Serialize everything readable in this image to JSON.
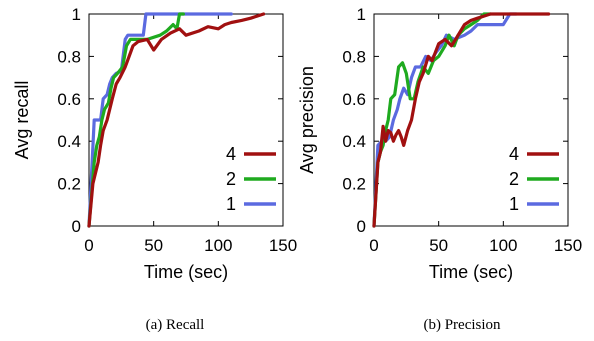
{
  "chart_data": [
    {
      "type": "line",
      "subtitle": "(a) Recall",
      "xlabel": "Time (sec)",
      "ylabel": "Avg recall",
      "xlim": [
        0,
        150
      ],
      "ylim": [
        0,
        1
      ],
      "xticks": [
        "0",
        "50",
        "100",
        "150"
      ],
      "yticks": [
        "0",
        "0.2",
        "0.4",
        "0.6",
        "0.8",
        "1"
      ],
      "grid": false,
      "legend_position": "bottom-right",
      "series": [
        {
          "name": "4",
          "color": "#a11010",
          "points": [
            [
              0,
              0
            ],
            [
              3,
              0.2
            ],
            [
              5,
              0.25
            ],
            [
              7,
              0.3
            ],
            [
              9,
              0.38
            ],
            [
              11,
              0.45
            ],
            [
              14,
              0.5
            ],
            [
              16,
              0.55
            ],
            [
              18,
              0.6
            ],
            [
              21,
              0.67
            ],
            [
              24,
              0.7
            ],
            [
              28,
              0.75
            ],
            [
              31,
              0.8
            ],
            [
              34,
              0.85
            ],
            [
              38,
              0.87
            ],
            [
              45,
              0.88
            ],
            [
              50,
              0.83
            ],
            [
              56,
              0.88
            ],
            [
              63,
              0.91
            ],
            [
              70,
              0.93
            ],
            [
              75,
              0.9
            ],
            [
              85,
              0.92
            ],
            [
              92,
              0.94
            ],
            [
              100,
              0.93
            ],
            [
              105,
              0.95
            ],
            [
              110,
              0.96
            ],
            [
              118,
              0.97
            ],
            [
              125,
              0.98
            ],
            [
              130,
              0.99
            ],
            [
              135,
              1.0
            ]
          ]
        },
        {
          "name": "2",
          "color": "#1faa1f",
          "points": [
            [
              0,
              0
            ],
            [
              4,
              0.3
            ],
            [
              6,
              0.38
            ],
            [
              8,
              0.42
            ],
            [
              10,
              0.5
            ],
            [
              12,
              0.55
            ],
            [
              15,
              0.58
            ],
            [
              17,
              0.65
            ],
            [
              19,
              0.7
            ],
            [
              22,
              0.72
            ],
            [
              26,
              0.75
            ],
            [
              29,
              0.85
            ],
            [
              32,
              0.88
            ],
            [
              45,
              0.88
            ],
            [
              55,
              0.9
            ],
            [
              60,
              0.92
            ],
            [
              65,
              0.95
            ],
            [
              68,
              0.93
            ],
            [
              70,
              1.0
            ],
            [
              73,
              1.0
            ]
          ]
        },
        {
          "name": "1",
          "color": "#5b6ae0",
          "points": [
            [
              0,
              0
            ],
            [
              4,
              0.5
            ],
            [
              9,
              0.5
            ],
            [
              11,
              0.6
            ],
            [
              14,
              0.62
            ],
            [
              16,
              0.67
            ],
            [
              18,
              0.7
            ],
            [
              21,
              0.72
            ],
            [
              25,
              0.73
            ],
            [
              28,
              0.88
            ],
            [
              30,
              0.9
            ],
            [
              42,
              0.9
            ],
            [
              44,
              1.0
            ],
            [
              110,
              1.0
            ]
          ]
        }
      ]
    },
    {
      "type": "line",
      "subtitle": "(b) Precision",
      "xlabel": "Time (sec)",
      "ylabel": "Avg precision",
      "xlim": [
        0,
        150
      ],
      "ylim": [
        0,
        1
      ],
      "xticks": [
        "0",
        "50",
        "100",
        "150"
      ],
      "yticks": [
        "0",
        "0.2",
        "0.4",
        "0.6",
        "0.8",
        "1"
      ],
      "grid": false,
      "legend_position": "bottom-right",
      "series": [
        {
          "name": "4",
          "color": "#a11010",
          "points": [
            [
              0,
              0
            ],
            [
              3,
              0.3
            ],
            [
              5,
              0.35
            ],
            [
              7,
              0.47
            ],
            [
              9,
              0.4
            ],
            [
              11,
              0.45
            ],
            [
              13,
              0.44
            ],
            [
              15,
              0.4
            ],
            [
              17,
              0.43
            ],
            [
              19,
              0.45
            ],
            [
              21,
              0.42
            ],
            [
              23,
              0.38
            ],
            [
              26,
              0.45
            ],
            [
              29,
              0.5
            ],
            [
              32,
              0.6
            ],
            [
              35,
              0.68
            ],
            [
              38,
              0.72
            ],
            [
              42,
              0.8
            ],
            [
              45,
              0.78
            ],
            [
              50,
              0.86
            ],
            [
              55,
              0.88
            ],
            [
              60,
              0.85
            ],
            [
              65,
              0.9
            ],
            [
              70,
              0.95
            ],
            [
              75,
              0.97
            ],
            [
              80,
              0.98
            ],
            [
              85,
              0.99
            ],
            [
              90,
              1.0
            ],
            [
              135,
              1.0
            ]
          ]
        },
        {
          "name": "2",
          "color": "#1faa1f",
          "points": [
            [
              0,
              0
            ],
            [
              3,
              0.3
            ],
            [
              5,
              0.35
            ],
            [
              7,
              0.38
            ],
            [
              9,
              0.45
            ],
            [
              11,
              0.5
            ],
            [
              13,
              0.6
            ],
            [
              16,
              0.62
            ],
            [
              19,
              0.75
            ],
            [
              22,
              0.77
            ],
            [
              25,
              0.72
            ],
            [
              28,
              0.6
            ],
            [
              31,
              0.6
            ],
            [
              34,
              0.68
            ],
            [
              38,
              0.75
            ],
            [
              42,
              0.72
            ],
            [
              46,
              0.78
            ],
            [
              50,
              0.8
            ],
            [
              55,
              0.85
            ],
            [
              58,
              0.9
            ],
            [
              62,
              0.85
            ],
            [
              65,
              0.9
            ],
            [
              70,
              0.93
            ],
            [
              75,
              0.95
            ],
            [
              80,
              0.97
            ],
            [
              85,
              1.0
            ],
            [
              90,
              1.0
            ]
          ]
        },
        {
          "name": "1",
          "color": "#5b6ae0",
          "points": [
            [
              0,
              0
            ],
            [
              3,
              0.38
            ],
            [
              6,
              0.4
            ],
            [
              9,
              0.4
            ],
            [
              12,
              0.42
            ],
            [
              15,
              0.5
            ],
            [
              18,
              0.55
            ],
            [
              20,
              0.6
            ],
            [
              23,
              0.65
            ],
            [
              26,
              0.62
            ],
            [
              29,
              0.7
            ],
            [
              32,
              0.75
            ],
            [
              36,
              0.75
            ],
            [
              40,
              0.8
            ],
            [
              44,
              0.78
            ],
            [
              48,
              0.82
            ],
            [
              52,
              0.85
            ],
            [
              56,
              0.9
            ],
            [
              62,
              0.88
            ],
            [
              70,
              0.9
            ],
            [
              75,
              0.92
            ],
            [
              80,
              0.95
            ],
            [
              100,
              0.95
            ],
            [
              105,
              1.0
            ],
            [
              110,
              1.0
            ]
          ]
        }
      ]
    }
  ]
}
